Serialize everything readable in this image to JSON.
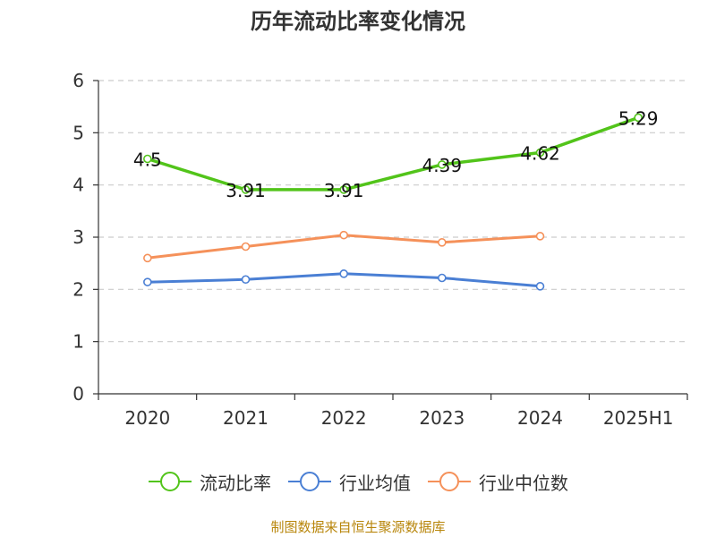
{
  "title": "历年流动比率变化情况",
  "source": "制图数据来自恒生聚源数据库",
  "chart_data": {
    "type": "line",
    "title": "历年流动比率变化情况",
    "categories": [
      "2020",
      "2021",
      "2022",
      "2023",
      "2024",
      "2025H1"
    ],
    "ylim": [
      0,
      6
    ],
    "yticks": [
      0,
      1,
      2,
      3,
      4,
      5,
      6
    ],
    "grid": true,
    "legend_position": "bottom",
    "series": [
      {
        "name": "流动比率",
        "color": "#52c41a",
        "values": [
          4.5,
          3.91,
          3.91,
          4.39,
          4.62,
          5.29
        ],
        "labels": [
          "4.5",
          "3.91",
          "3.91",
          "4.39",
          "4.62",
          "5.29"
        ]
      },
      {
        "name": "行业均值",
        "color": "#4a7fd4",
        "values": [
          2.14,
          2.19,
          2.3,
          2.22,
          2.06,
          null
        ]
      },
      {
        "name": "行业中位数",
        "color": "#f5915a",
        "values": [
          2.6,
          2.82,
          3.04,
          2.9,
          3.02,
          null
        ]
      }
    ]
  }
}
